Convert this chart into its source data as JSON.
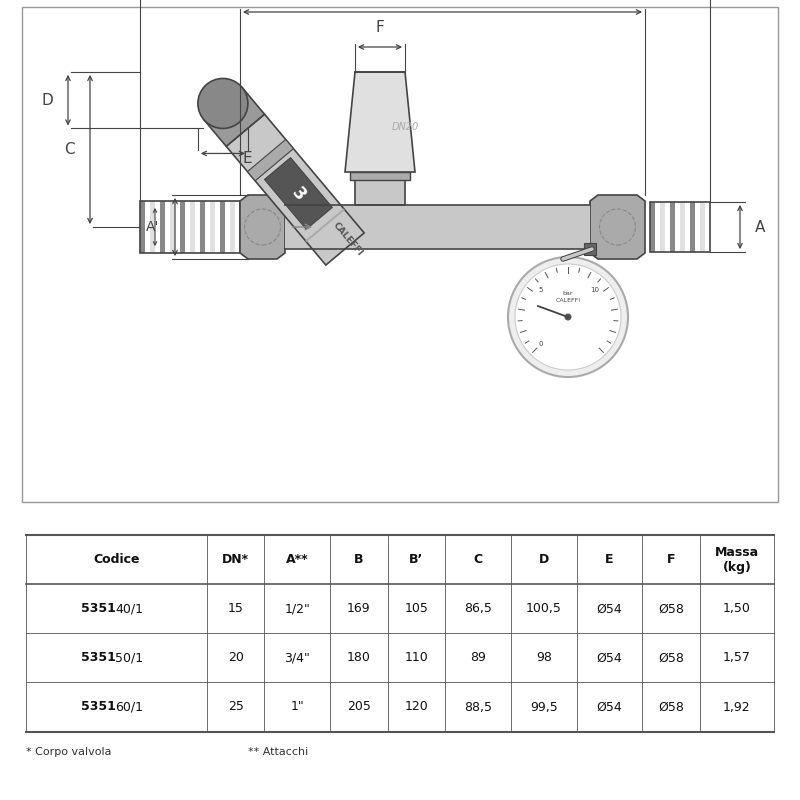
{
  "bg_color": "#ffffff",
  "table_headers": [
    "Codice",
    "DN*",
    "A**",
    "B",
    "B’",
    "C",
    "D",
    "E",
    "F",
    "Massa\n(kg)"
  ],
  "rows": [
    [
      "535140/1",
      "15",
      "1/2\"",
      "169",
      "105",
      "86,5",
      "100,5",
      "Ø54",
      "Ø58",
      "1,50"
    ],
    [
      "535150/1",
      "20",
      "3/4\"",
      "180",
      "110",
      "89",
      "98",
      "Ø54",
      "Ø58",
      "1,57"
    ],
    [
      "535160/1",
      "25",
      "1\"",
      "205",
      "120",
      "88,5",
      "99,5",
      "Ø54",
      "Ø58",
      "1,92"
    ]
  ],
  "bold_prefix": [
    "5351",
    "5351",
    "5351"
  ],
  "suffix": [
    "40/1",
    "50/1",
    "60/1"
  ],
  "footnote1": "* Corpo valvola",
  "footnote2": "** Attacchi",
  "valve_color": "#c8c8c8",
  "valve_dark": "#888888",
  "valve_mid": "#aaaaaa",
  "valve_light": "#e0e0e0",
  "line_color": "#444444",
  "dim_line_color": "#444444",
  "text_color": "#222222"
}
